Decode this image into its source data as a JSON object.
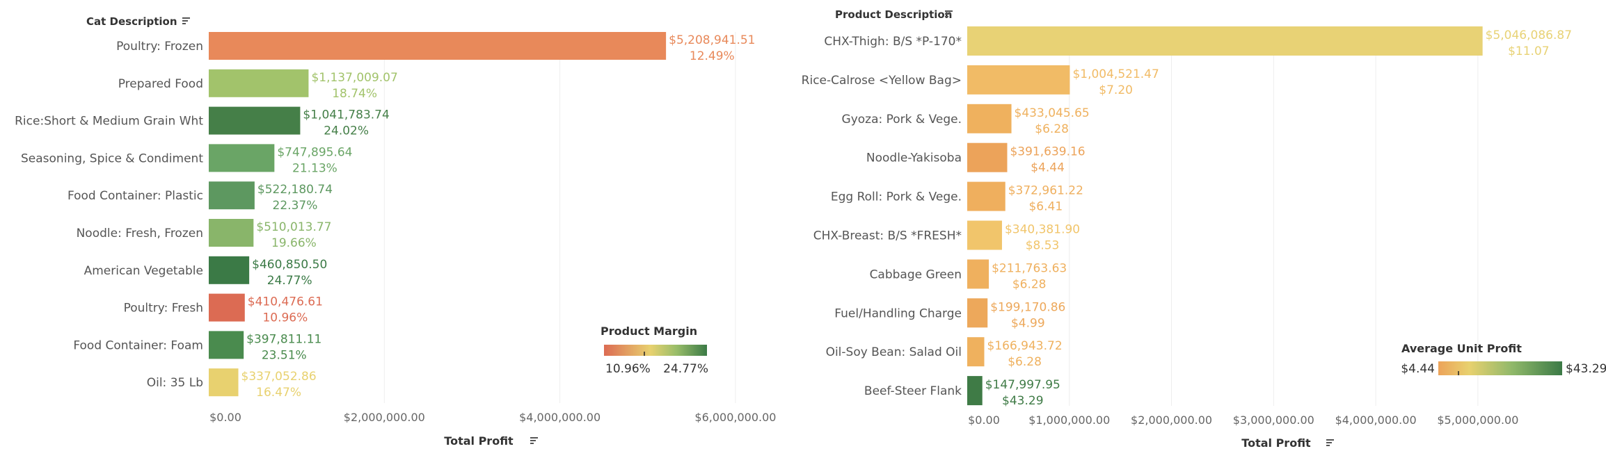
{
  "chart_data": [
    {
      "type": "bar",
      "orientation": "horizontal",
      "row_header": "Cat Description",
      "xlabel": "Total Profit",
      "xlim": [
        0,
        6500000
      ],
      "x_ticks": [
        {
          "value": 0,
          "label": "$0.00"
        },
        {
          "value": 2000000,
          "label": "$2,000,000.00"
        },
        {
          "value": 4000000,
          "label": "$4,000,000.00"
        },
        {
          "value": 6000000,
          "label": "$6,000,000.00"
        }
      ],
      "color_legend": {
        "title": "Product Margin",
        "min_label": "10.96%",
        "max_label": "24.77%",
        "min": 10.96,
        "max": 24.77
      },
      "categories": [
        "Poultry: Frozen",
        "Prepared Food",
        "Rice:Short & Medium Grain Wht",
        "Seasoning, Spice & Condiment",
        "Food Container: Plastic",
        "Noodle: Fresh, Frozen",
        "American Vegetable",
        "Poultry: Fresh",
        "Food Container: Foam",
        "Oil: 35 Lb"
      ],
      "values": [
        5208941.51,
        1137009.07,
        1041783.74,
        747895.64,
        522180.74,
        510013.77,
        460850.5,
        410476.61,
        397811.11,
        337052.86
      ],
      "value_labels": [
        "$5,208,941.51",
        "$1,137,009.07",
        "$1,041,783.74",
        "$747,895.64",
        "$522,180.74",
        "$510,013.77",
        "$460,850.50",
        "$410,476.61",
        "$397,811.11",
        "$337,052.86"
      ],
      "color_values": [
        12.49,
        18.74,
        24.02,
        21.13,
        22.37,
        19.66,
        24.77,
        10.96,
        23.51,
        16.47
      ],
      "color_labels": [
        "12.49%",
        "18.74%",
        "24.02%",
        "21.13%",
        "22.37%",
        "19.66%",
        "24.77%",
        "10.96%",
        "23.51%",
        "16.47%"
      ],
      "bar_colors": [
        "#E8895A",
        "#A2C36B",
        "#457F48",
        "#6AA566",
        "#5D9860",
        "#89B56A",
        "#3B7A46",
        "#DC6B53",
        "#4A8B4E",
        "#E8D16F"
      ],
      "grid": true
    },
    {
      "type": "bar",
      "orientation": "horizontal",
      "row_header": "Product Description",
      "xlabel": "Total Profit",
      "xlim": [
        0,
        6050000
      ],
      "x_ticks": [
        {
          "value": 0,
          "label": "$0.00"
        },
        {
          "value": 1000000,
          "label": "$1,000,000.00"
        },
        {
          "value": 2000000,
          "label": "$2,000,000.00"
        },
        {
          "value": 3000000,
          "label": "$3,000,000.00"
        },
        {
          "value": 4000000,
          "label": "$4,000,000.00"
        },
        {
          "value": 5000000,
          "label": "$5,000,000.00"
        }
      ],
      "color_legend": {
        "title": "Average Unit Profit",
        "min_label": "$4.44",
        "max_label": "$43.29",
        "min": 4.44,
        "max": 43.29
      },
      "categories": [
        "CHX-Thigh: B/S *P-170*",
        "Rice-Calrose <Yellow Bag>",
        "Gyoza: Pork & Vege.",
        "Noodle-Yakisoba",
        "Egg Roll: Pork & Vege.",
        "CHX-Breast: B/S  *FRESH*",
        "Cabbage Green",
        "Fuel/Handling Charge",
        "Oil-Soy Bean: Salad Oil",
        "Beef-Steer Flank"
      ],
      "values": [
        5046086.87,
        1004521.47,
        433045.65,
        391639.16,
        372961.22,
        340381.9,
        211763.63,
        199170.86,
        166943.72,
        147997.95
      ],
      "value_labels": [
        "$5,046,086.87",
        "$1,004,521.47",
        "$433,045.65",
        "$391,639.16",
        "$372,961.22",
        "$340,381.90",
        "$211,763.63",
        "$199,170.86",
        "$166,943.72",
        "$147,997.95"
      ],
      "color_values": [
        11.07,
        7.2,
        6.28,
        4.44,
        6.41,
        8.53,
        6.28,
        4.99,
        6.28,
        43.29
      ],
      "color_labels": [
        "$11.07",
        "$7.20",
        "$6.28",
        "$4.44",
        "$6.41",
        "$8.53",
        "$6.28",
        "$4.99",
        "$6.28",
        "$43.29"
      ],
      "bar_colors": [
        "#E8D275",
        "#F1BB66",
        "#EFB15E",
        "#ECA35A",
        "#EFAF5E",
        "#F1C56B",
        "#EFB05E",
        "#EDA85B",
        "#EFB15E",
        "#3F7B46"
      ],
      "grid": true
    }
  ]
}
